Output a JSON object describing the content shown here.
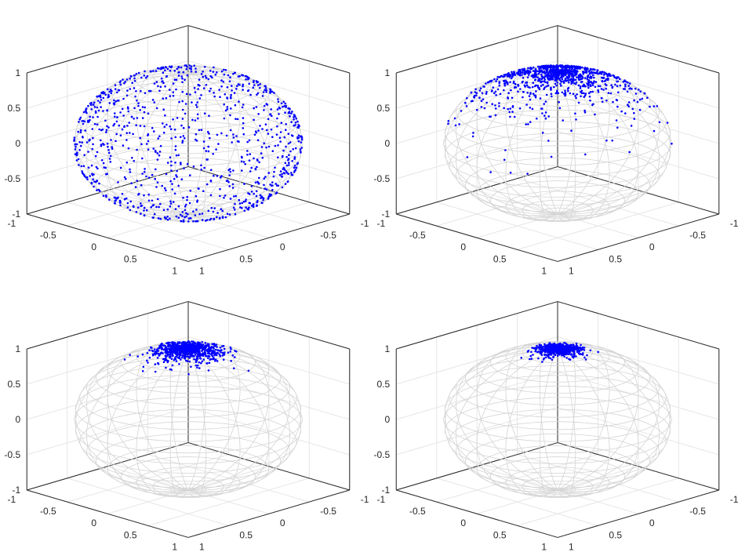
{
  "figure": {
    "background": "#ffffff",
    "axis_color": "#262626",
    "mesh_color": "#d4d4d4",
    "point_color": "#0000ff"
  },
  "chart_data": [
    {
      "type": "scatter",
      "projection": "3d",
      "position": "top-left",
      "title": "",
      "xlabel": "",
      "ylabel": "",
      "zlabel": "",
      "xlim": [
        -1,
        1
      ],
      "ylim": [
        -1,
        1
      ],
      "zlim": [
        -1,
        1
      ],
      "x_ticks": [
        "-1",
        "-0.5",
        "0",
        "0.5",
        "1"
      ],
      "y_ticks": [
        "-1",
        "-0.5",
        "0",
        "0.5",
        "1"
      ],
      "z_ticks": [
        "-1",
        "-0.5",
        "0",
        "0.5",
        "1"
      ],
      "grid": true,
      "background_surface": "unit sphere wireframe",
      "distribution": "uniform over the unit sphere",
      "approx_point_count": 1000,
      "series": [
        {
          "color": "#0000ff",
          "spread_deg": 180,
          "center": [
            0,
            0,
            1
          ]
        }
      ]
    },
    {
      "type": "scatter",
      "projection": "3d",
      "position": "top-right",
      "title": "",
      "xlabel": "",
      "ylabel": "",
      "zlabel": "",
      "xlim": [
        -1,
        1
      ],
      "ylim": [
        -1,
        1
      ],
      "zlim": [
        -1,
        1
      ],
      "x_ticks": [
        "-1",
        "-0.5",
        "0",
        "0.5",
        "1"
      ],
      "y_ticks": [
        "-1",
        "-0.5",
        "0",
        "0.5",
        "1"
      ],
      "z_ticks": [
        "-1",
        "-0.5",
        "0",
        "0.5",
        "1"
      ],
      "grid": true,
      "background_surface": "unit sphere wireframe",
      "distribution": "concentrated around the north pole, z mostly between 0.3 and 1",
      "approx_point_count": 1000,
      "series": [
        {
          "color": "#0000ff",
          "spread_deg": 60,
          "center": [
            0,
            0,
            1
          ]
        }
      ]
    },
    {
      "type": "scatter",
      "projection": "3d",
      "position": "bottom-left",
      "title": "",
      "xlabel": "",
      "ylabel": "",
      "zlabel": "",
      "xlim": [
        -1,
        1
      ],
      "ylim": [
        -1,
        1
      ],
      "zlim": [
        -1,
        1
      ],
      "x_ticks": [
        "-1",
        "-0.5",
        "0",
        "0.5",
        "1"
      ],
      "y_ticks": [
        "-1",
        "-0.5",
        "0",
        "0.5",
        "1"
      ],
      "z_ticks": [
        "-1",
        "-0.5",
        "0",
        "0.5",
        "1"
      ],
      "grid": true,
      "background_surface": "unit sphere wireframe",
      "distribution": "tight cluster near the north pole, z above 0.9",
      "approx_point_count": 1000,
      "series": [
        {
          "color": "#0000ff",
          "spread_deg": 24,
          "center": [
            0,
            0,
            1
          ]
        }
      ]
    },
    {
      "type": "scatter",
      "projection": "3d",
      "position": "bottom-right",
      "title": "",
      "xlabel": "",
      "ylabel": "",
      "zlabel": "",
      "xlim": [
        -1,
        1
      ],
      "ylim": [
        -1,
        1
      ],
      "zlim": [
        -1,
        1
      ],
      "x_ticks": [
        "-1",
        "-0.5",
        "0",
        "0.5",
        "1"
      ],
      "y_ticks": [
        "-1",
        "-0.5",
        "0",
        "0.5",
        "1"
      ],
      "z_ticks": [
        "-1",
        "-0.5",
        "0",
        "0.5",
        "1"
      ],
      "grid": true,
      "background_surface": "unit sphere wireframe",
      "distribution": "very tight cluster at the north pole, z above 0.95",
      "approx_point_count": 1000,
      "series": [
        {
          "color": "#0000ff",
          "spread_deg": 14,
          "center": [
            0,
            0,
            1
          ]
        }
      ]
    }
  ]
}
